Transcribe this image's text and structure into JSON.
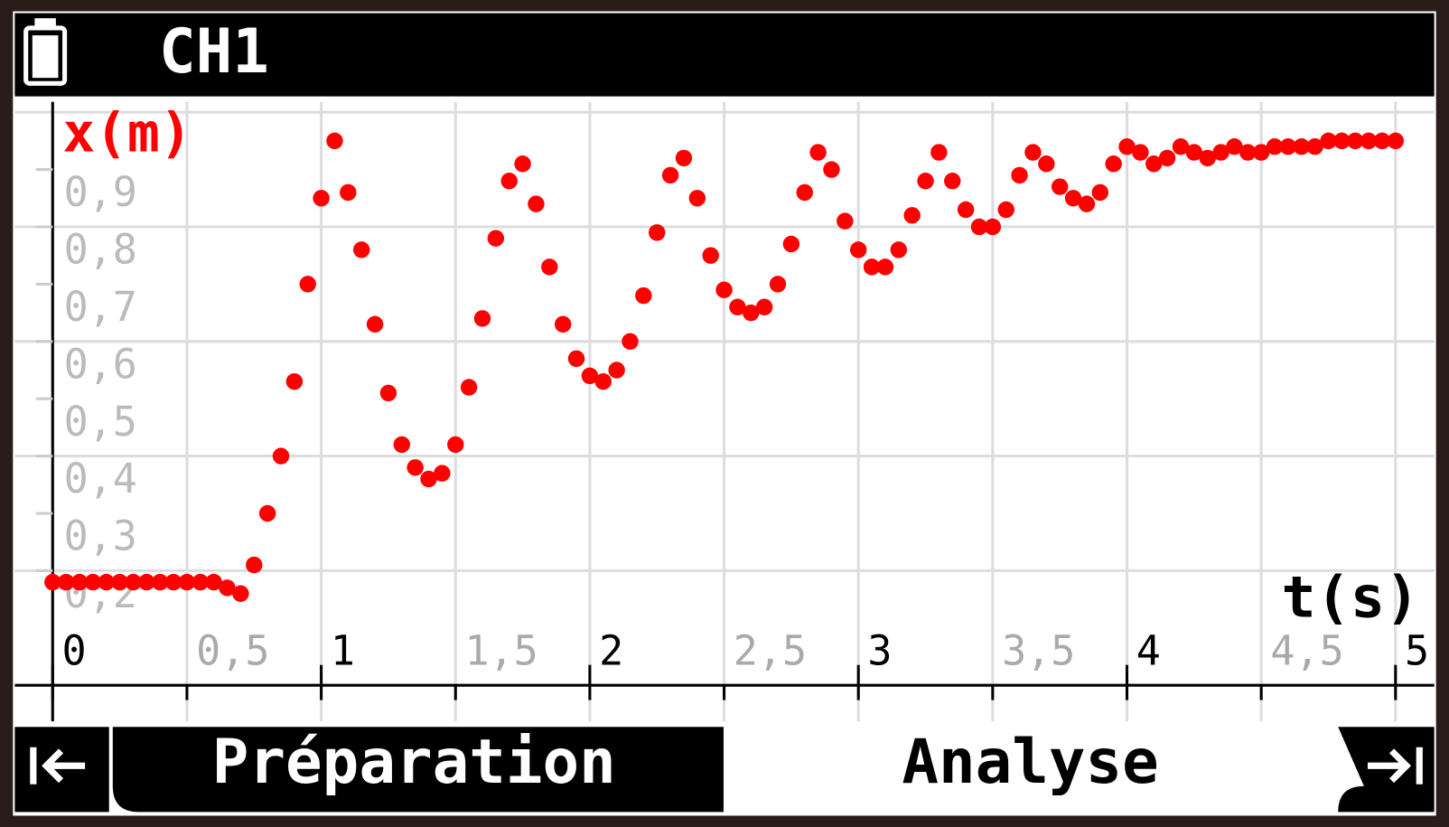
{
  "header": {
    "title": "CH1"
  },
  "chart_data": {
    "type": "scatter",
    "x_label": "t(s)",
    "y_label": "x(m)",
    "color": "#ff0000",
    "grid": true,
    "xlim": [
      -0.141,
      5.144
    ],
    "ylim": [
      -0.063,
      1.018
    ],
    "xticks": [
      0,
      {
        "value": 0.5,
        "label": "0,5"
      },
      1,
      {
        "value": 1.5,
        "label": "1,5"
      },
      2,
      {
        "value": 2.5,
        "label": "2,5"
      },
      3,
      {
        "value": 3.5,
        "label": "3,5"
      },
      4,
      {
        "value": 4.5,
        "label": "4,5"
      },
      5
    ],
    "yticks": [
      {
        "value": 0.2,
        "label": "0,2"
      },
      {
        "value": 0.3,
        "label": "0,3"
      },
      {
        "value": 0.4,
        "label": "0,4"
      },
      {
        "value": 0.5,
        "label": "0,5"
      },
      {
        "value": 0.6,
        "label": "0,6"
      },
      {
        "value": 0.7,
        "label": "0,7"
      },
      {
        "value": 0.8,
        "label": "0,8"
      },
      {
        "value": 0.9,
        "label": "0,9"
      }
    ],
    "ygrid": [
      0.2,
      0.4,
      0.6,
      0.8,
      1
    ],
    "x": [
      0,
      0.05,
      0.1,
      0.15,
      0.2,
      0.25,
      0.3,
      0.35,
      0.4,
      0.45,
      0.5,
      0.55,
      0.6,
      0.65,
      0.7,
      0.75,
      0.8,
      0.85,
      0.9,
      0.95,
      1,
      1.05,
      1.1,
      1.15,
      1.2,
      1.25,
      1.3,
      1.35,
      1.4,
      1.45,
      1.5,
      1.55,
      1.6,
      1.65,
      1.7,
      1.75,
      1.8,
      1.85,
      1.9,
      1.95,
      2,
      2.05,
      2.1,
      2.15,
      2.2,
      2.25,
      2.3,
      2.35,
      2.4,
      2.45,
      2.5,
      2.55,
      2.6,
      2.65,
      2.7,
      2.75,
      2.8,
      2.85,
      2.9,
      2.95,
      3,
      3.05,
      3.1,
      3.15,
      3.2,
      3.25,
      3.3,
      3.35,
      3.4,
      3.45,
      3.5,
      3.55,
      3.6,
      3.65,
      3.7,
      3.75,
      3.8,
      3.85,
      3.9,
      3.95,
      4,
      4.05,
      4.1,
      4.15,
      4.2,
      4.25,
      4.3,
      4.35,
      4.4,
      4.45,
      4.5,
      4.55,
      4.6,
      4.65,
      4.7,
      4.75,
      4.8,
      4.85,
      4.9,
      4.95,
      5
    ],
    "values": [
      0.18,
      0.18,
      0.18,
      0.18,
      0.18,
      0.18,
      0.18,
      0.18,
      0.18,
      0.18,
      0.18,
      0.18,
      0.18,
      0.17,
      0.16,
      0.21,
      0.3,
      0.4,
      0.53,
      0.7,
      0.85,
      0.95,
      0.86,
      0.76,
      0.63,
      0.51,
      0.42,
      0.38,
      0.36,
      0.37,
      0.42,
      0.52,
      0.64,
      0.78,
      0.88,
      0.91,
      0.84,
      0.73,
      0.63,
      0.57,
      0.54,
      0.53,
      0.55,
      0.6,
      0.68,
      0.79,
      0.89,
      0.92,
      0.85,
      0.75,
      0.69,
      0.66,
      0.65,
      0.66,
      0.7,
      0.77,
      0.86,
      0.93,
      0.9,
      0.81,
      0.76,
      0.73,
      0.73,
      0.76,
      0.82,
      0.88,
      0.93,
      0.88,
      0.83,
      0.8,
      0.8,
      0.83,
      0.89,
      0.93,
      0.91,
      0.87,
      0.85,
      0.84,
      0.86,
      0.91,
      0.94,
      0.93,
      0.91,
      0.92,
      0.94,
      0.93,
      0.92,
      0.93,
      0.94,
      0.93,
      0.93,
      0.94,
      0.94,
      0.94,
      0.94,
      0.95,
      0.95,
      0.95,
      0.95,
      0.95,
      0.95
    ]
  },
  "tabs": {
    "left": "Préparation",
    "right": "Analyse"
  }
}
